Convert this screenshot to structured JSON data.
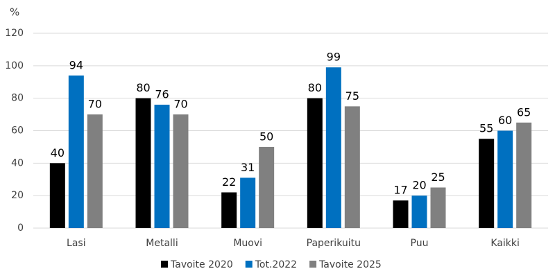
{
  "chart_data": {
    "type": "bar",
    "y_label": "%",
    "categories": [
      "Lasi",
      "Metalli",
      "Muovi",
      "Paperikuitu",
      "Puu",
      "Kaikki"
    ],
    "series": [
      {
        "name": "Tavoite 2020",
        "color": "#000000",
        "values": [
          40,
          80,
          22,
          80,
          17,
          55
        ]
      },
      {
        "name": "Tot.2022",
        "color": "#0070c0",
        "values": [
          94,
          76,
          31,
          99,
          20,
          60
        ]
      },
      {
        "name": "Tavoite 2025",
        "color": "#808080",
        "values": [
          70,
          70,
          50,
          75,
          25,
          65
        ]
      }
    ],
    "ylim": [
      0,
      120
    ],
    "yticks": [
      0,
      20,
      40,
      60,
      80,
      100,
      120
    ],
    "grid": true,
    "legend": "bottom"
  }
}
